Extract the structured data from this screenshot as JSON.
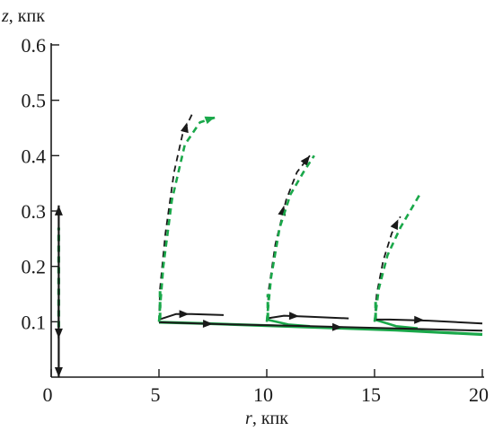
{
  "chart_data": {
    "type": "line",
    "title": "",
    "xlabel": {
      "var": "r",
      "unit": ", кпк"
    },
    "ylabel": {
      "var": "z",
      "unit": ", кпк"
    },
    "xlim": [
      0,
      20
    ],
    "ylim": [
      0,
      0.6
    ],
    "xticks": [
      {
        "value": 0,
        "label": "0"
      },
      {
        "value": 5,
        "label": "5"
      },
      {
        "value": 10,
        "label": "10"
      },
      {
        "value": 15,
        "label": "15"
      },
      {
        "value": 20,
        "label": "20"
      }
    ],
    "yticks": [
      {
        "value": 0.1,
        "label": "0.1"
      },
      {
        "value": 0.2,
        "label": "0.2"
      },
      {
        "value": 0.3,
        "label": "0.3"
      },
      {
        "value": 0.4,
        "label": "0.4"
      },
      {
        "value": 0.5,
        "label": "0.5"
      },
      {
        "value": 0.6,
        "label": "0.6"
      }
    ],
    "grid": false,
    "colors": {
      "black": "#1a1a1a",
      "green": "#1aa84a"
    },
    "series": [
      {
        "color": "#1aa84a",
        "dash": "solid",
        "width": 3.2,
        "points": [
          [
            5.0,
            0.099
          ],
          [
            7,
            0.097
          ],
          [
            10,
            0.093
          ],
          [
            13,
            0.089
          ],
          [
            16,
            0.085
          ],
          [
            18,
            0.081
          ],
          [
            20,
            0.077
          ]
        ]
      },
      {
        "color": "#1aa84a",
        "dash": "solid",
        "width": 2.6,
        "points": [
          [
            10.0,
            0.104
          ],
          [
            11,
            0.095
          ],
          [
            12,
            0.092
          ]
        ]
      },
      {
        "color": "#1aa84a",
        "dash": "solid",
        "width": 2.6,
        "points": [
          [
            15.0,
            0.104
          ],
          [
            16,
            0.092
          ],
          [
            17,
            0.088
          ]
        ]
      },
      {
        "color": "#1aa84a",
        "dash": "dashed",
        "width": 3.2,
        "points": [
          [
            0.35,
            0.09
          ],
          [
            0.35,
            0.13
          ],
          [
            0.35,
            0.17
          ],
          [
            0.35,
            0.22
          ],
          [
            0.35,
            0.27
          ]
        ]
      },
      {
        "color": "#1a1a1a",
        "dash": "solid",
        "width": 2.2,
        "points": [
          [
            0.35,
            0.0
          ],
          [
            0.35,
            0.31
          ]
        ],
        "arrows_at": [
          [
            0.35,
            0.31
          ],
          [
            0.35,
            0.0
          ]
        ]
      },
      {
        "color": "#1a1a1a",
        "dash": "solid",
        "width": 2.2,
        "points": [
          [
            0.35,
            0.13
          ],
          [
            0.35,
            0.07
          ]
        ],
        "arrows_at": [
          [
            0.35,
            0.07
          ]
        ]
      },
      {
        "color": "#1a1a1a",
        "dash": "solid",
        "width": 2.0,
        "points": [
          [
            5.0,
            0.104
          ],
          [
            5.8,
            0.114
          ],
          [
            6.5,
            0.114
          ],
          [
            8.0,
            0.112
          ]
        ],
        "arrows_at": [
          [
            6.4,
            0.114
          ]
        ]
      },
      {
        "color": "#1a1a1a",
        "dash": "solid",
        "width": 2.0,
        "points": [
          [
            5.0,
            0.099
          ],
          [
            7.5,
            0.096
          ],
          [
            12,
            0.092
          ],
          [
            16,
            0.088
          ],
          [
            20,
            0.084
          ]
        ],
        "arrows_at": [
          [
            7.5,
            0.096
          ],
          [
            13.5,
            0.09
          ]
        ]
      },
      {
        "color": "#1a1a1a",
        "dash": "solid",
        "width": 2.0,
        "points": [
          [
            10.0,
            0.106
          ],
          [
            10.8,
            0.111
          ],
          [
            12,
            0.109
          ],
          [
            13.8,
            0.106
          ]
        ],
        "arrows_at": [
          [
            11.5,
            0.11
          ]
        ]
      },
      {
        "color": "#1a1a1a",
        "dash": "solid",
        "width": 2.0,
        "points": [
          [
            15.0,
            0.104
          ],
          [
            15.7,
            0.104
          ],
          [
            17.5,
            0.102
          ],
          [
            20,
            0.097
          ]
        ],
        "arrows_at": [
          [
            17.3,
            0.103
          ]
        ]
      },
      {
        "color": "#1a1a1a",
        "dash": "dashed",
        "width": 1.8,
        "points": [
          [
            5.0,
            0.1
          ],
          [
            5.05,
            0.16
          ],
          [
            5.3,
            0.26
          ],
          [
            5.7,
            0.37
          ],
          [
            6.1,
            0.44
          ],
          [
            6.6,
            0.48
          ]
        ],
        "arrows_at": [
          [
            6.3,
            0.46
          ]
        ]
      },
      {
        "color": "#1aa84a",
        "dash": "dashed",
        "width": 2.6,
        "points": [
          [
            5.0,
            0.1
          ],
          [
            5.2,
            0.2
          ],
          [
            5.6,
            0.32
          ],
          [
            6.2,
            0.42
          ],
          [
            6.9,
            0.46
          ],
          [
            7.7,
            0.47
          ]
        ],
        "arrows_at": [
          [
            7.6,
            0.47
          ]
        ]
      },
      {
        "color": "#1a1a1a",
        "dash": "dashed",
        "width": 1.8,
        "points": [
          [
            10.0,
            0.1
          ],
          [
            10.1,
            0.16
          ],
          [
            10.4,
            0.24
          ],
          [
            10.9,
            0.32
          ],
          [
            11.4,
            0.37
          ],
          [
            12.0,
            0.4
          ]
        ],
        "arrows_at": [
          [
            12.0,
            0.4
          ],
          [
            10.8,
            0.31
          ]
        ]
      },
      {
        "color": "#1aa84a",
        "dash": "dashed",
        "width": 2.6,
        "points": [
          [
            10.0,
            0.1
          ],
          [
            10.2,
            0.18
          ],
          [
            10.6,
            0.27
          ],
          [
            11.1,
            0.33
          ],
          [
            11.7,
            0.37
          ],
          [
            12.2,
            0.4
          ]
        ]
      },
      {
        "color": "#1a1a1a",
        "dash": "dashed",
        "width": 1.8,
        "points": [
          [
            15.0,
            0.1
          ],
          [
            15.1,
            0.15
          ],
          [
            15.4,
            0.21
          ],
          [
            15.8,
            0.26
          ],
          [
            16.2,
            0.29
          ]
        ],
        "arrows_at": [
          [
            16.1,
            0.285
          ]
        ]
      },
      {
        "color": "#1aa84a",
        "dash": "dashed",
        "width": 2.6,
        "points": [
          [
            15.0,
            0.1
          ],
          [
            15.2,
            0.16
          ],
          [
            15.6,
            0.22
          ],
          [
            16.2,
            0.27
          ],
          [
            16.8,
            0.31
          ],
          [
            17.1,
            0.33
          ]
        ]
      },
      {
        "color": "#1aa84a",
        "dash": "dashed",
        "width": 3.0,
        "points": [
          [
            5.05,
            0.105
          ],
          [
            5.05,
            0.16
          ]
        ]
      },
      {
        "color": "#1aa84a",
        "dash": "dashed",
        "width": 3.0,
        "points": [
          [
            10.05,
            0.105
          ],
          [
            10.05,
            0.15
          ]
        ]
      },
      {
        "color": "#1aa84a",
        "dash": "dashed",
        "width": 3.0,
        "points": [
          [
            15.05,
            0.105
          ],
          [
            15.05,
            0.14
          ]
        ]
      }
    ]
  }
}
